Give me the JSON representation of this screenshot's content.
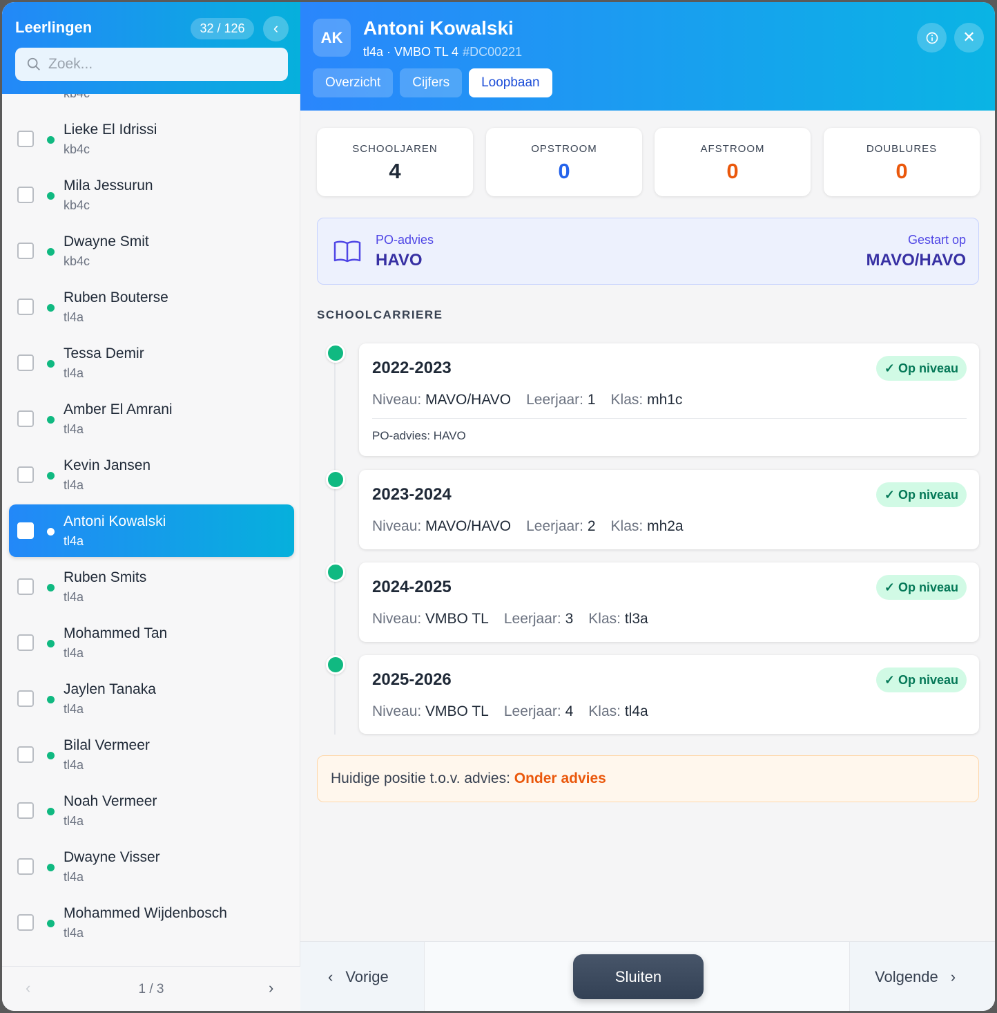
{
  "sidebar": {
    "title": "Leerlingen",
    "count": "32 / 126",
    "search_placeholder": "Zoek...",
    "top_partial_sub": "kb4c",
    "students": [
      {
        "name": "Lieke El Idrissi",
        "class": "kb4c"
      },
      {
        "name": "Mila Jessurun",
        "class": "kb4c"
      },
      {
        "name": "Dwayne Smit",
        "class": "kb4c"
      },
      {
        "name": "Ruben Bouterse",
        "class": "tl4a"
      },
      {
        "name": "Tessa Demir",
        "class": "tl4a"
      },
      {
        "name": "Amber El Amrani",
        "class": "tl4a"
      },
      {
        "name": "Kevin Jansen",
        "class": "tl4a"
      },
      {
        "name": "Antoni Kowalski",
        "class": "tl4a",
        "selected": true
      },
      {
        "name": "Ruben Smits",
        "class": "tl4a"
      },
      {
        "name": "Mohammed Tan",
        "class": "tl4a"
      },
      {
        "name": "Jaylen Tanaka",
        "class": "tl4a"
      },
      {
        "name": "Bilal Vermeer",
        "class": "tl4a"
      },
      {
        "name": "Noah Vermeer",
        "class": "tl4a"
      },
      {
        "name": "Dwayne Visser",
        "class": "tl4a"
      },
      {
        "name": "Mohammed Wijdenbosch",
        "class": "tl4a"
      }
    ],
    "pagination": "1 / 3"
  },
  "header": {
    "initials": "AK",
    "name": "Antoni Kowalski",
    "subtitle": "tl4a · VMBO TL 4",
    "id": "#DC00221",
    "tabs": [
      "Overzicht",
      "Cijfers",
      "Loopbaan"
    ],
    "active_tab": "Loopbaan"
  },
  "stats": [
    {
      "label": "SCHOOLJAREN",
      "value": "4",
      "color": "#1f2937"
    },
    {
      "label": "OPSTROOM",
      "value": "0",
      "color": "#2563eb"
    },
    {
      "label": "AFSTROOM",
      "value": "0",
      "color": "#ea580c"
    },
    {
      "label": "DOUBLURES",
      "value": "0",
      "color": "#ea580c"
    }
  ],
  "advice": {
    "po_label": "PO-advies",
    "po_value": "HAVO",
    "start_label": "Gestart op",
    "start_value": "MAVO/HAVO"
  },
  "section_title": "SCHOOLCARRIERE",
  "career": [
    {
      "year": "2022-2023",
      "status": "✓ Op niveau",
      "niveau_label": "Niveau:",
      "niveau": "MAVO/HAVO",
      "leerjaar_label": "Leerjaar:",
      "leerjaar": "1",
      "klas_label": "Klas:",
      "klas": "mh1c",
      "note": "PO-advies: HAVO"
    },
    {
      "year": "2023-2024",
      "status": "✓ Op niveau",
      "niveau_label": "Niveau:",
      "niveau": "MAVO/HAVO",
      "leerjaar_label": "Leerjaar:",
      "leerjaar": "2",
      "klas_label": "Klas:",
      "klas": "mh2a"
    },
    {
      "year": "2024-2025",
      "status": "✓ Op niveau",
      "niveau_label": "Niveau:",
      "niveau": "VMBO TL",
      "leerjaar_label": "Leerjaar:",
      "leerjaar": "3",
      "klas_label": "Klas:",
      "klas": "tl3a"
    },
    {
      "year": "2025-2026",
      "status": "✓ Op niveau",
      "niveau_label": "Niveau:",
      "niveau": "VMBO TL",
      "leerjaar_label": "Leerjaar:",
      "leerjaar": "4",
      "klas_label": "Klas:",
      "klas": "tl4a"
    }
  ],
  "position": {
    "label": "Huidige positie t.o.v. advies:",
    "value": "Onder advies"
  },
  "footer": {
    "prev": "Vorige",
    "close": "Sluiten",
    "next": "Volgende"
  }
}
